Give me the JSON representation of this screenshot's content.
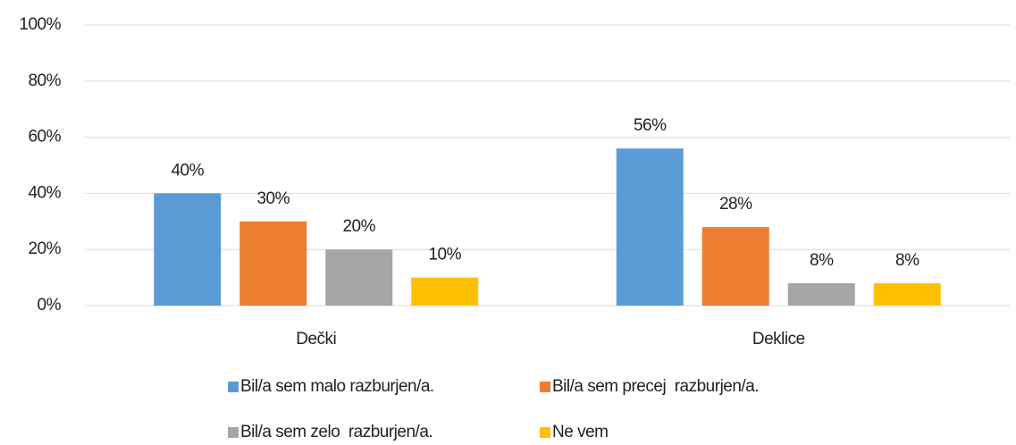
{
  "chart_data": {
    "type": "bar",
    "categories": [
      "Dečki",
      "Deklice"
    ],
    "series": [
      {
        "name": "Bil/a sem malo razburjen/a.",
        "color": "#5b9bd5",
        "values": [
          40,
          56
        ],
        "value_labels": [
          "40%",
          "56%"
        ]
      },
      {
        "name": "Bil/a sem precej  razburjen/a.",
        "color": "#ed7d31",
        "values": [
          30,
          28
        ],
        "value_labels": [
          "30%",
          "28%"
        ]
      },
      {
        "name": "Bil/a sem zelo  razburjen/a.",
        "color": "#a5a5a5",
        "values": [
          20,
          8
        ],
        "value_labels": [
          "20%",
          "8%"
        ]
      },
      {
        "name": "Ne vem",
        "color": "#ffc000",
        "values": [
          10,
          8
        ],
        "value_labels": [
          "10%",
          "8%"
        ]
      }
    ],
    "ylim": [
      0,
      100
    ],
    "yticks": [
      {
        "value": 0,
        "label": "0%"
      },
      {
        "value": 20,
        "label": "20%"
      },
      {
        "value": 40,
        "label": "40%"
      },
      {
        "value": 60,
        "label": "60%"
      },
      {
        "value": 80,
        "label": "80%"
      },
      {
        "value": 100,
        "label": "100%"
      }
    ],
    "grid": true,
    "legend": "bottom"
  }
}
